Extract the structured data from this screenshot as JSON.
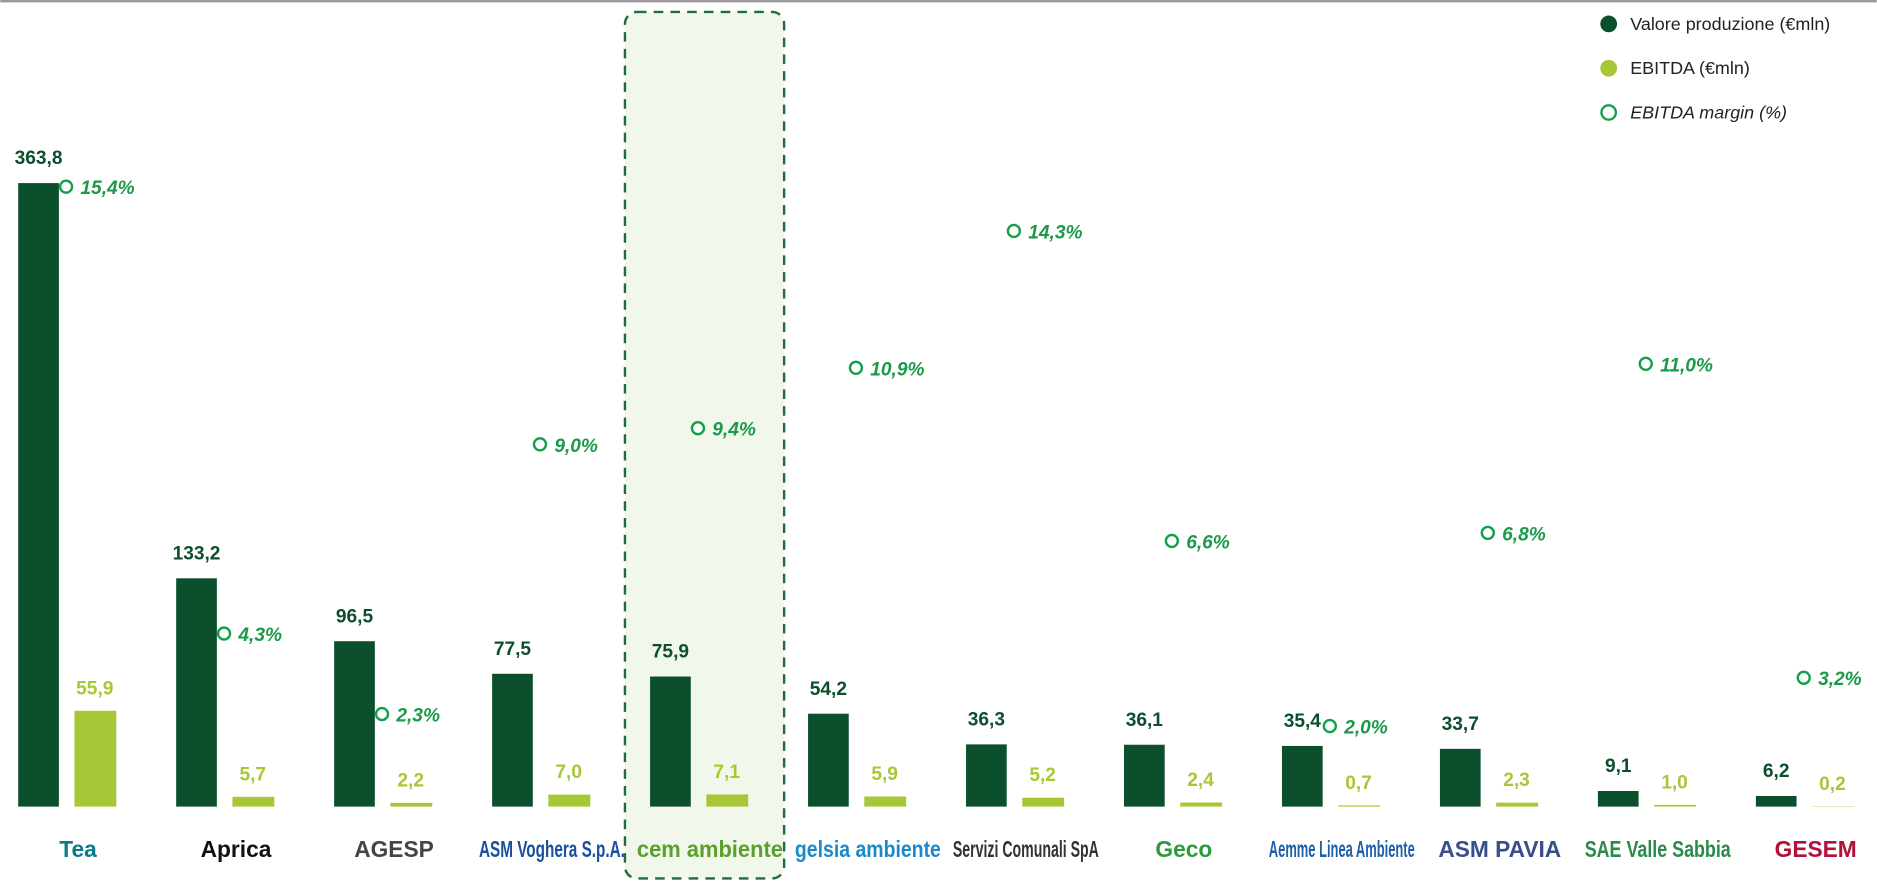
{
  "chart_data": {
    "type": "bar",
    "categories": [
      "Tea",
      "Aprica",
      "AGESP",
      "ASM Voghera S.p.A.",
      "cem ambiente",
      "gelsia ambiente",
      "Servizi Comunali SpA",
      "Geco",
      "Aemme Linea Ambiente",
      "ASM PAVIA",
      "SAE Valle Sabbia",
      "GESEM"
    ],
    "series": [
      {
        "name": "Valore produzione (€mln)",
        "color": "#0b4f2c",
        "values": [
          363.8,
          133.2,
          96.5,
          77.5,
          75.9,
          54.2,
          36.3,
          36.1,
          35.4,
          33.7,
          9.1,
          6.2
        ],
        "value_labels": [
          "363,8",
          "133,2",
          "96,5",
          "77,5",
          "75,9",
          "54,2",
          "36,3",
          "36,1",
          "35,4",
          "33,7",
          "9,1",
          "6,2"
        ]
      },
      {
        "name": "EBITDA (€mln)",
        "color": "#a6c836",
        "values": [
          55.9,
          5.7,
          2.2,
          7.0,
          7.1,
          5.9,
          5.2,
          2.4,
          0.7,
          2.3,
          1.0,
          0.2
        ],
        "value_labels": [
          "55,9",
          "5,7",
          "2,2",
          "7,0",
          "7,1",
          "5,9",
          "5,2",
          "2,4",
          "0,7",
          "2,3",
          "1,0",
          "0,2"
        ]
      },
      {
        "name": "EBITDA margin (%)",
        "color": "#12a04a",
        "axis": "y2",
        "values": [
          15.4,
          4.3,
          2.3,
          9.0,
          9.4,
          10.9,
          14.3,
          6.6,
          2.0,
          6.8,
          11.0,
          3.2
        ],
        "value_labels": [
          "15,4%",
          "4,3%",
          "2,3%",
          "9,0%",
          "9,4%",
          "10,9%",
          "14,3%",
          "6,6%",
          "2,0%",
          "6,8%",
          "11,0%",
          "3,2%"
        ]
      }
    ],
    "highlight": "cem ambiente"
  }
}
